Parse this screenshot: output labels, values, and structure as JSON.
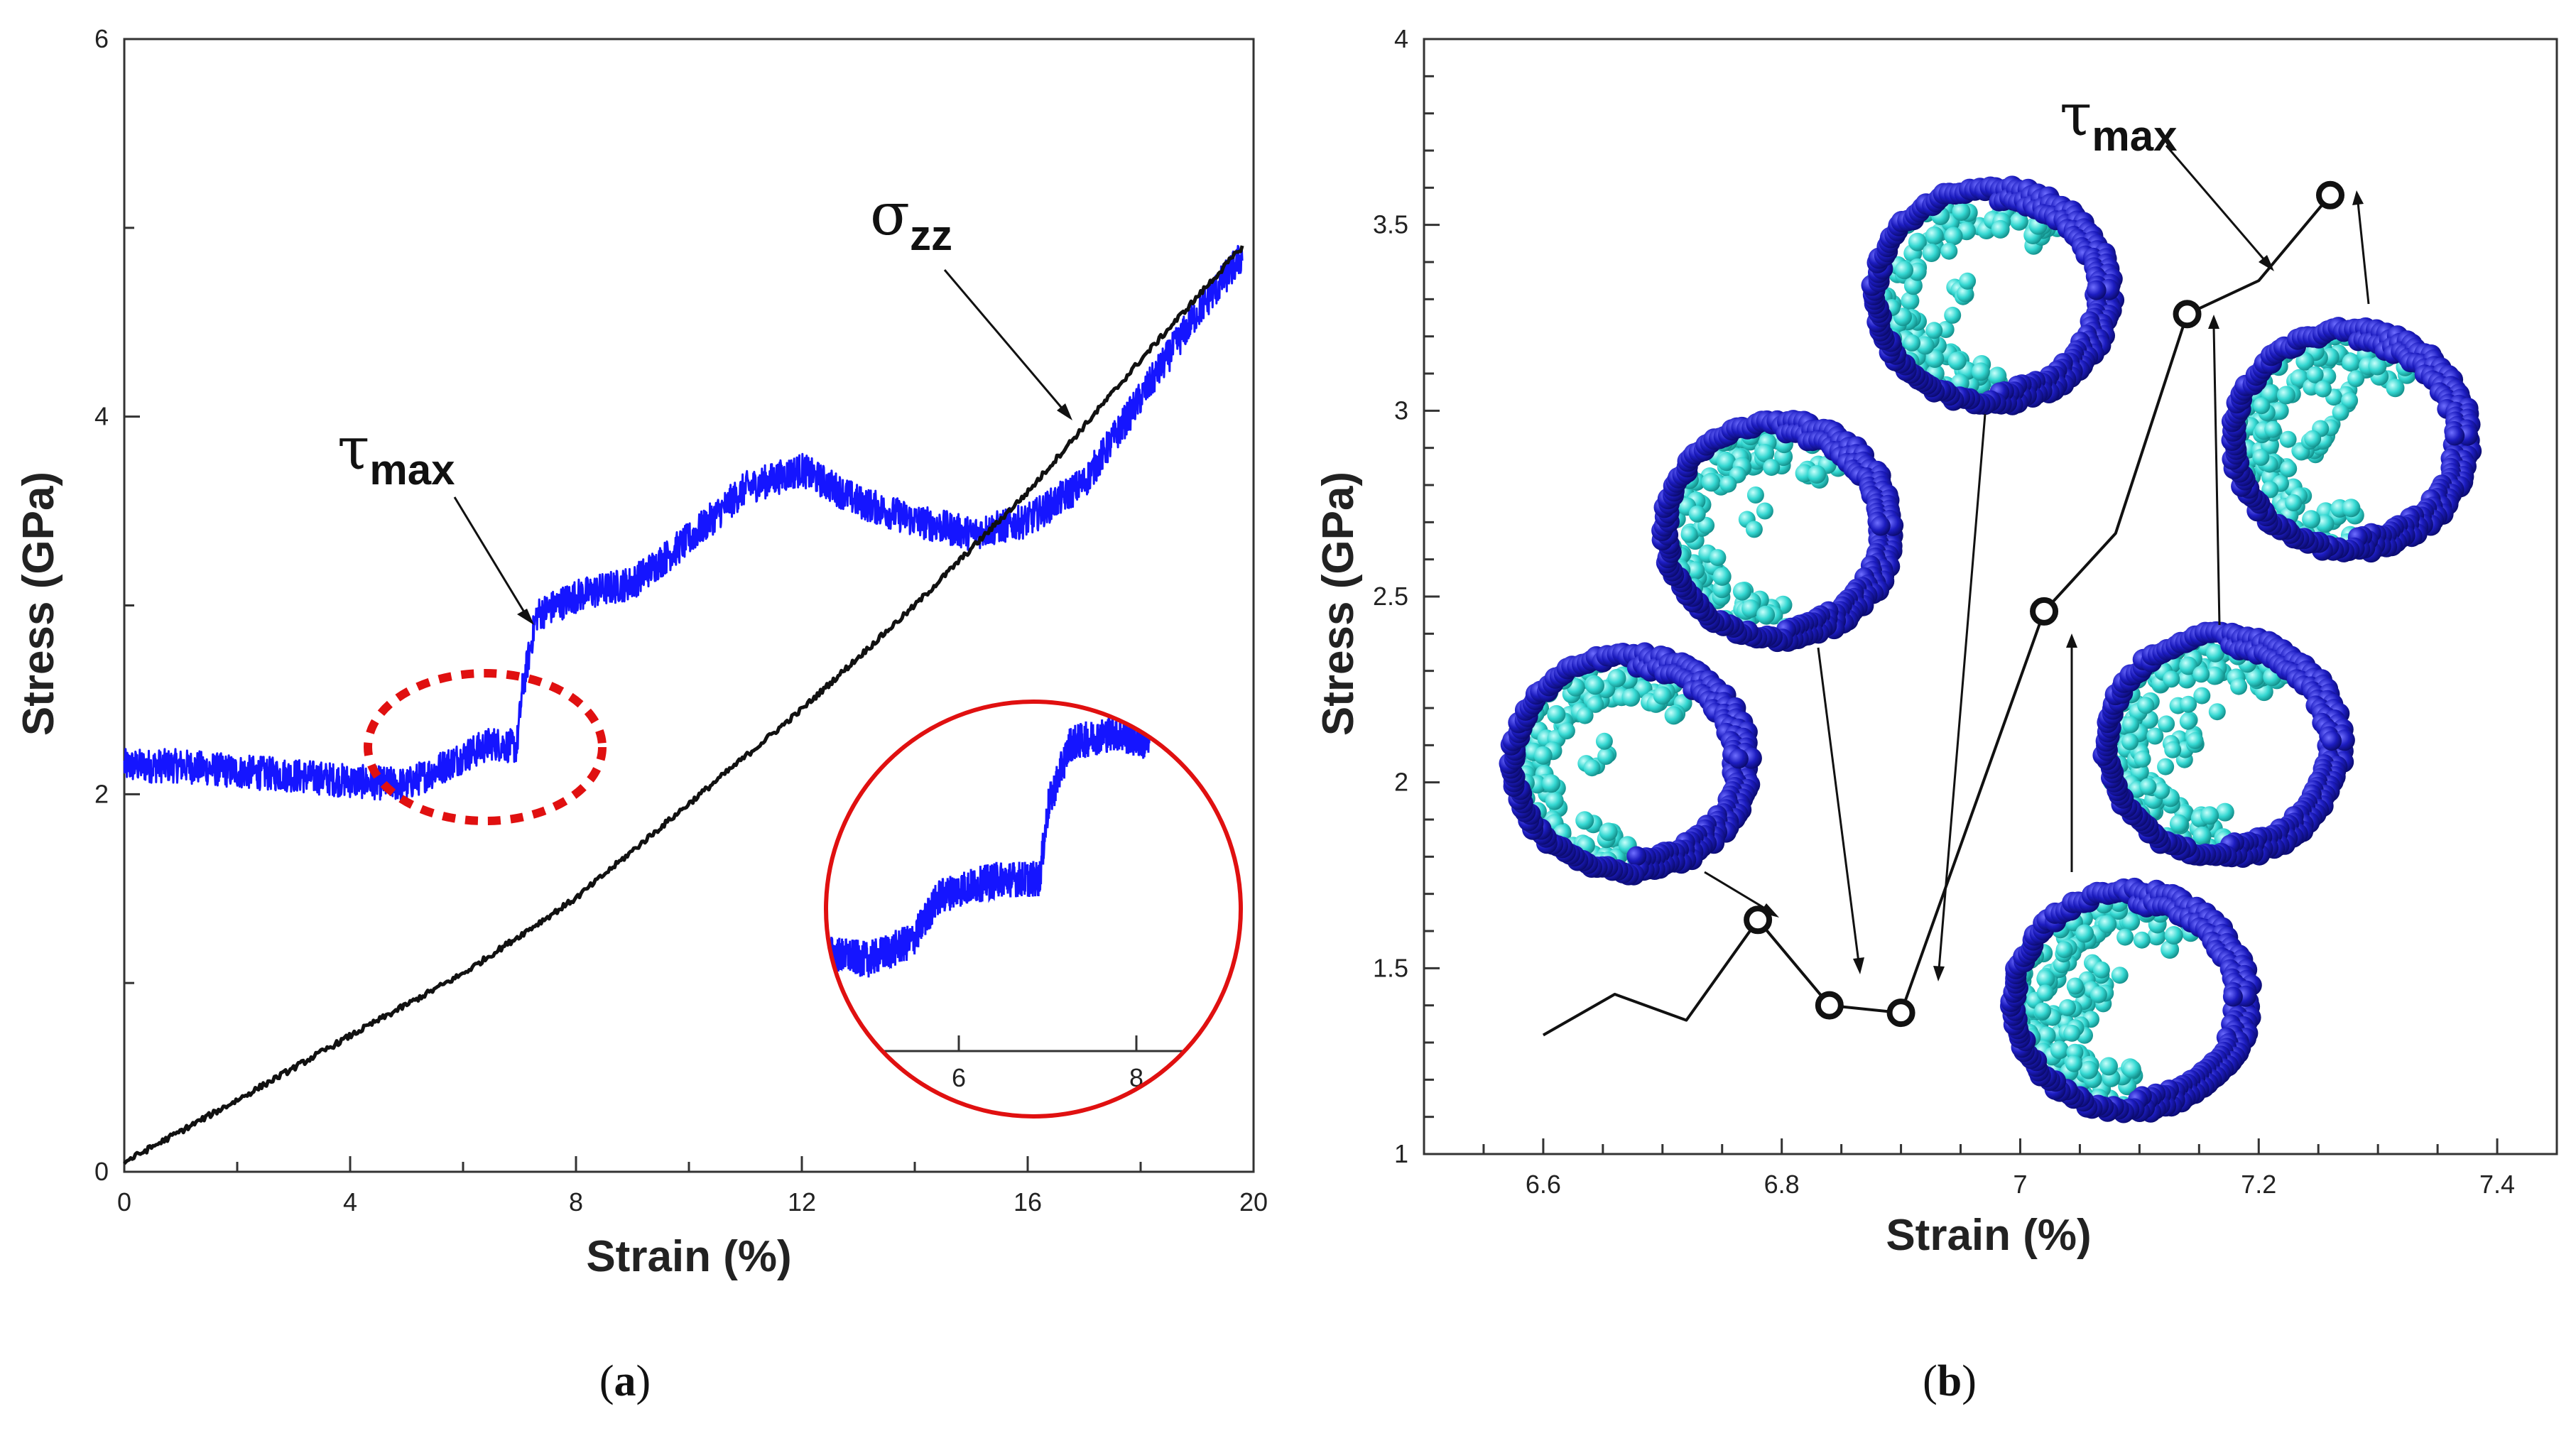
{
  "chart_data": [
    {
      "type": "line",
      "panel": "(a)",
      "xlabel": "Strain (%)",
      "ylabel": "Stress (GPa)",
      "xlim": [
        0,
        20
      ],
      "ylim": [
        0,
        6
      ],
      "xticks": [
        0,
        4,
        8,
        12,
        16,
        20
      ],
      "yticks": [
        0,
        2,
        4,
        6
      ],
      "series": [
        {
          "name": "τmax",
          "color": "#1515ff",
          "x": [
            0,
            1,
            2,
            3,
            4,
            5,
            6,
            6.5,
            6.95,
            7.05,
            7.3,
            8,
            9,
            10,
            11,
            12,
            13,
            14,
            15,
            16,
            17,
            18,
            19,
            19.8
          ],
          "y": [
            2.15,
            2.15,
            2.12,
            2.1,
            2.07,
            2.05,
            2.2,
            2.27,
            2.25,
            2.55,
            2.95,
            3.05,
            3.12,
            3.35,
            3.62,
            3.72,
            3.55,
            3.45,
            3.38,
            3.45,
            3.65,
            4.1,
            4.55,
            4.85
          ]
        },
        {
          "name": "σzz",
          "color": "#111111",
          "x": [
            0,
            2,
            4,
            6,
            8,
            10,
            12,
            14,
            16,
            18,
            19.8
          ],
          "y": [
            0.05,
            0.38,
            0.72,
            1.05,
            1.45,
            1.95,
            2.45,
            3.0,
            3.6,
            4.3,
            4.9
          ]
        }
      ],
      "annotations": [
        {
          "text": "τ",
          "sub": "max",
          "points_to": {
            "x": 7.2,
            "y": 2.9
          }
        },
        {
          "text": "σ",
          "sub": "zz",
          "points_to": {
            "x": 16.8,
            "y": 3.9
          }
        }
      ],
      "inset": {
        "xticks": [
          6,
          8
        ],
        "xlim": [
          4.5,
          8.6
        ],
        "ylim": [
          1.8,
          2.75
        ],
        "x": [
          4.5,
          5,
          5.5,
          5.8,
          6,
          6.5,
          6.95,
          7.05,
          7.3,
          7.8,
          8.2
        ],
        "y": [
          2.05,
          2.03,
          2.08,
          2.2,
          2.22,
          2.25,
          2.25,
          2.45,
          2.62,
          2.65,
          2.62
        ]
      }
    },
    {
      "type": "line",
      "panel": "(b)",
      "xlabel": "Strain (%)",
      "ylabel": "Stress (GPa)",
      "xlim": [
        6.5,
        7.45
      ],
      "ylim": [
        1,
        4
      ],
      "xticks": [
        6.6,
        6.8,
        7,
        7.2,
        7.4
      ],
      "yticks": [
        1,
        1.5,
        2,
        2.5,
        3,
        3.5,
        4
      ],
      "series": [
        {
          "name": "τmax",
          "color": "#111111",
          "x": [
            6.6,
            6.66,
            6.72,
            6.78,
            6.84,
            6.9,
            6.96,
            7.02,
            7.08,
            7.14,
            7.2,
            7.26
          ],
          "y": [
            1.32,
            1.43,
            1.36,
            1.63,
            1.4,
            1.38,
            1.92,
            2.46,
            2.67,
            3.26,
            3.35,
            3.58
          ]
        }
      ],
      "markers": [
        {
          "x": 6.78,
          "y": 1.63
        },
        {
          "x": 6.84,
          "y": 1.4
        },
        {
          "x": 6.9,
          "y": 1.38
        },
        {
          "x": 7.02,
          "y": 2.46
        },
        {
          "x": 7.14,
          "y": 3.26
        },
        {
          "x": 7.26,
          "y": 3.58
        }
      ],
      "annotations": [
        {
          "text": "τ",
          "sub": "max",
          "points_to": {
            "x": 7.2,
            "y": 3.35
          }
        }
      ]
    }
  ],
  "captions": {
    "a": {
      "open": "(",
      "letter": "a",
      "close": ")"
    },
    "b": {
      "open": "(",
      "letter": "b",
      "close": ")"
    }
  },
  "colors": {
    "blue": "#1515ff",
    "black": "#111111",
    "inset_circle": "#e01010",
    "dashed_ellipse": "#e01010",
    "atom_dark": "#1a1ab0",
    "atom_light": "#33d6d0"
  }
}
